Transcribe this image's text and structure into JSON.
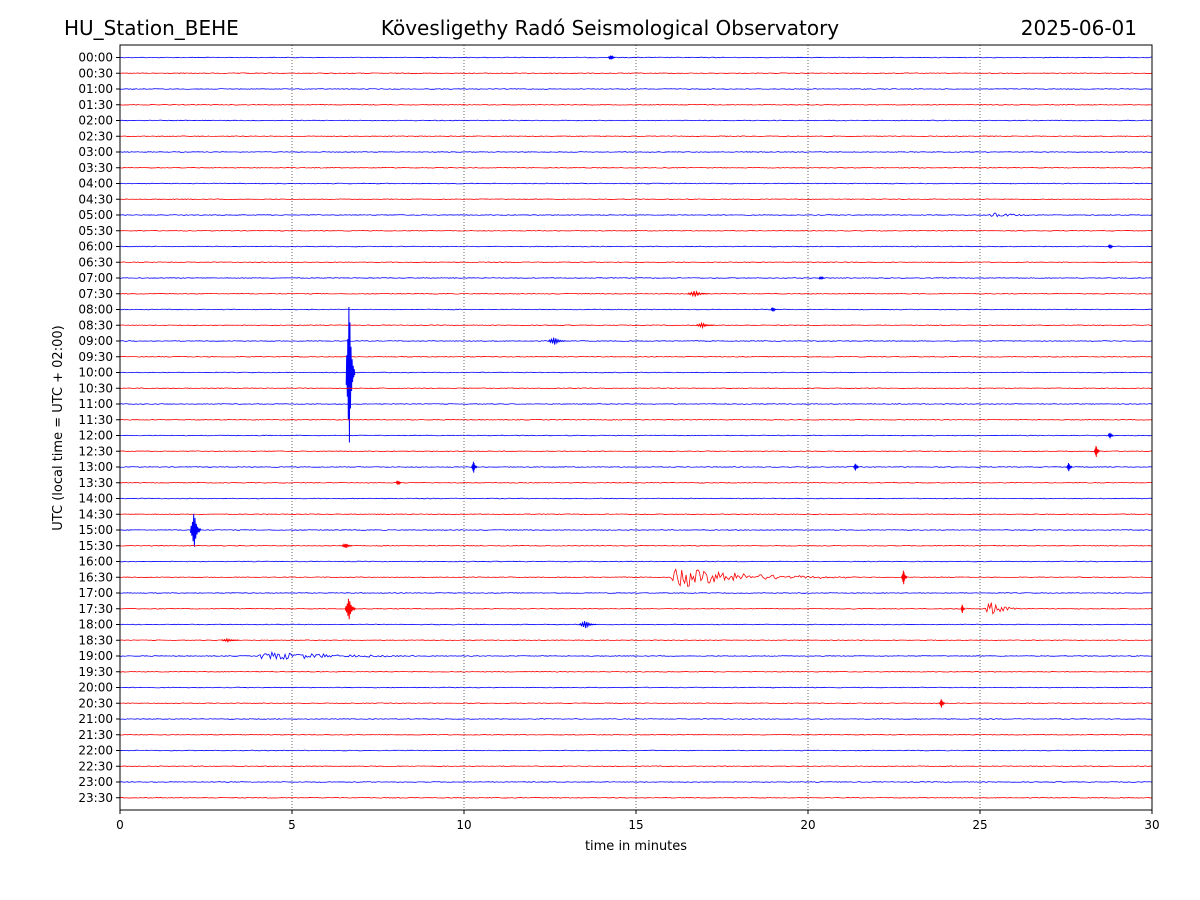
{
  "header": {
    "station": "HU_Station_BEHE",
    "observatory": "Kövesligethy Radó Seismological Observatory",
    "date": "2025-06-01"
  },
  "chart_data": {
    "type": "line",
    "title": "Kövesligethy Radó Seismological Observatory",
    "xlabel": "time in minutes",
    "ylabel": "UTC (local time = UTC + 02:00)",
    "xlim": [
      0,
      30
    ],
    "x_ticks": [
      0,
      5,
      10,
      15,
      20,
      25,
      30
    ],
    "grid": "vertical dotted at 5,10,15,20,25",
    "colors": {
      "even_hour": "#0000ff",
      "half_hour": "#ff0000"
    },
    "rows": [
      "00:00",
      "00:30",
      "01:00",
      "01:30",
      "02:00",
      "02:30",
      "03:00",
      "03:30",
      "04:00",
      "04:30",
      "05:00",
      "05:30",
      "06:00",
      "06:30",
      "07:00",
      "07:30",
      "08:00",
      "08:30",
      "09:00",
      "09:30",
      "10:00",
      "10:30",
      "11:00",
      "11:30",
      "12:00",
      "12:30",
      "13:00",
      "13:30",
      "14:00",
      "14:30",
      "15:00",
      "15:30",
      "16:00",
      "16:30",
      "17:00",
      "17:30",
      "18:00",
      "18:30",
      "19:00",
      "19:30",
      "20:00",
      "20:30",
      "21:00",
      "21:30",
      "22:00",
      "22:30",
      "23:00",
      "23:30"
    ],
    "events": [
      {
        "row": "00:00",
        "t": 14.3,
        "amp": 0.3,
        "dur": 0.2
      },
      {
        "row": "05:00",
        "t": 25.4,
        "amp": 0.5,
        "dur": 1.2
      },
      {
        "row": "06:00",
        "t": 28.8,
        "amp": 0.3,
        "dur": 0.15
      },
      {
        "row": "07:00",
        "t": 20.4,
        "amp": 0.2,
        "dur": 0.15
      },
      {
        "row": "07:30",
        "t": 16.8,
        "amp": 0.4,
        "dur": 0.6
      },
      {
        "row": "08:00",
        "t": 19.0,
        "amp": 0.3,
        "dur": 0.15
      },
      {
        "row": "08:30",
        "t": 17.0,
        "amp": 0.3,
        "dur": 0.5
      },
      {
        "row": "09:00",
        "t": 12.7,
        "amp": 0.5,
        "dur": 0.5
      },
      {
        "row": "10:00",
        "t": 6.7,
        "amp": 10.0,
        "dur": 0.25
      },
      {
        "row": "12:00",
        "t": 28.8,
        "amp": 0.4,
        "dur": 0.15
      },
      {
        "row": "12:30",
        "t": 28.4,
        "amp": 0.8,
        "dur": 0.15
      },
      {
        "row": "13:00",
        "t": 10.3,
        "amp": 0.8,
        "dur": 0.15
      },
      {
        "row": "13:00",
        "t": 21.4,
        "amp": 0.5,
        "dur": 0.15
      },
      {
        "row": "13:00",
        "t": 27.6,
        "amp": 0.6,
        "dur": 0.15
      },
      {
        "row": "13:30",
        "t": 8.1,
        "amp": 0.3,
        "dur": 0.15
      },
      {
        "row": "15:00",
        "t": 2.2,
        "amp": 2.4,
        "dur": 0.3
      },
      {
        "row": "15:30",
        "t": 6.6,
        "amp": 0.3,
        "dur": 0.3
      },
      {
        "row": "16:30",
        "t": 16.2,
        "amp": 1.8,
        "dur": 5.0
      },
      {
        "row": "16:30",
        "t": 22.8,
        "amp": 1.0,
        "dur": 0.15
      },
      {
        "row": "17:30",
        "t": 6.7,
        "amp": 1.5,
        "dur": 0.3
      },
      {
        "row": "17:30",
        "t": 25.3,
        "amp": 1.2,
        "dur": 1.0
      },
      {
        "row": "17:30",
        "t": 24.5,
        "amp": 0.6,
        "dur": 0.1
      },
      {
        "row": "18:00",
        "t": 13.6,
        "amp": 0.5,
        "dur": 0.5
      },
      {
        "row": "18:30",
        "t": 3.2,
        "amp": 0.2,
        "dur": 0.5
      },
      {
        "row": "19:00",
        "t": 4.2,
        "amp": 0.8,
        "dur": 5.0
      },
      {
        "row": "20:30",
        "t": 23.9,
        "amp": 0.6,
        "dur": 0.15
      }
    ]
  }
}
